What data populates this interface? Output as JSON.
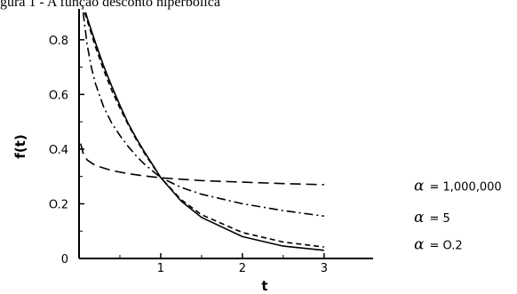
{
  "caption": "gura 1 - A função desconto hiperbólica",
  "chart_data": {
    "type": "line",
    "xlabel": "t",
    "ylabel": "f(t)",
    "xlim": [
      0,
      3.6
    ],
    "ylim": [
      0,
      0.9
    ],
    "xticks": [
      1,
      2,
      3
    ],
    "xtick_labels": [
      "1",
      "2",
      "3"
    ],
    "yticks": [
      0,
      0.2,
      0.4,
      0.6,
      0.8
    ],
    "ytick_labels": [
      "0",
      "O.2",
      "O.4",
      "O.6",
      "O.8"
    ],
    "grid": false,
    "series": [
      {
        "name": "α = 1,000,000",
        "alpha_symbol": "α",
        "alpha_value": "= 1,000,000",
        "dash": "long-dash",
        "x": [
          0.02,
          0.05,
          0.1,
          0.2,
          0.4,
          0.6,
          0.8,
          1.0,
          1.5,
          2.0,
          2.5,
          3.0
        ],
        "y": [
          0.42,
          0.385,
          0.36,
          0.34,
          0.322,
          0.31,
          0.302,
          0.295,
          0.285,
          0.279,
          0.274,
          0.27
        ]
      },
      {
        "name": "α = 5",
        "alpha_symbol": "α",
        "alpha_value": "= 5",
        "dash": "dash-dot",
        "x": [
          0.05,
          0.1,
          0.15,
          0.2,
          0.3,
          0.4,
          0.5,
          0.6,
          0.7,
          0.8,
          0.9,
          1.0,
          1.25,
          1.5,
          2.0,
          2.5,
          3.0
        ],
        "y": [
          0.9,
          0.78,
          0.7,
          0.64,
          0.555,
          0.495,
          0.45,
          0.41,
          0.375,
          0.345,
          0.32,
          0.296,
          0.26,
          0.235,
          0.2,
          0.175,
          0.155
        ]
      },
      {
        "name": "α = 0.2",
        "alpha_symbol": "α",
        "alpha_value": "= O.2",
        "dash": "short-dash",
        "x": [
          0.07,
          0.1,
          0.2,
          0.3,
          0.4,
          0.5,
          0.6,
          0.7,
          0.8,
          0.9,
          1.0,
          1.25,
          1.5,
          2.0,
          2.5,
          3.0
        ],
        "y": [
          0.9,
          0.87,
          0.775,
          0.69,
          0.615,
          0.55,
          0.49,
          0.435,
          0.385,
          0.34,
          0.296,
          0.215,
          0.16,
          0.095,
          0.06,
          0.042
        ]
      },
      {
        "name": "solid",
        "dash": "solid",
        "x": [
          0.08,
          0.1,
          0.2,
          0.3,
          0.4,
          0.5,
          0.6,
          0.7,
          0.8,
          0.9,
          1.0,
          1.25,
          1.5,
          2.0,
          2.5,
          3.0
        ],
        "y": [
          0.9,
          0.88,
          0.79,
          0.705,
          0.63,
          0.56,
          0.495,
          0.44,
          0.39,
          0.343,
          0.296,
          0.21,
          0.15,
          0.08,
          0.045,
          0.03
        ]
      }
    ]
  }
}
